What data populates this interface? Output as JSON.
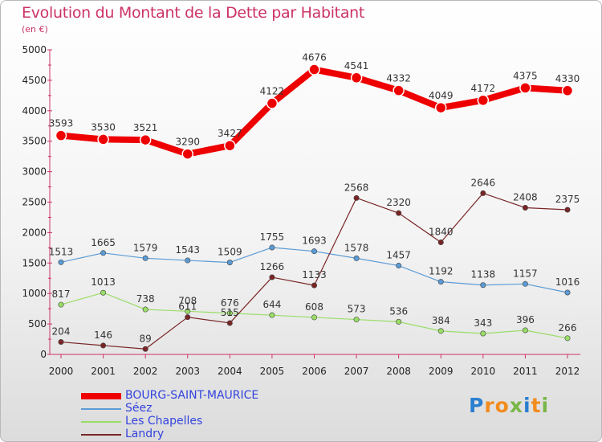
{
  "title": "Evolution du Montant de la Dette par Habitant",
  "subtitle": "(en €)",
  "brand": {
    "letters": [
      "P",
      "r",
      "o",
      "x",
      "i",
      "t",
      "i"
    ],
    "colors": [
      "#2b7fd1",
      "#f28c1e",
      "#f28c1e",
      "#7ab648",
      "#2b7fd1",
      "#f28c1e",
      "#7ab648"
    ]
  },
  "chart_data": {
    "type": "line",
    "title": "Evolution du Montant de la Dette par Habitant",
    "subtitle": "(en €)",
    "x": [
      "2000",
      "2001",
      "2002",
      "2003",
      "2004",
      "2005",
      "2006",
      "2007",
      "2008",
      "2009",
      "2010",
      "2011",
      "2012"
    ],
    "ylim": [
      0,
      5000
    ],
    "yticks": [
      "0",
      "500",
      "1000",
      "1500",
      "2000",
      "2500",
      "3000",
      "3500",
      "4000",
      "4500",
      "5000"
    ],
    "grid": false,
    "legend_position": "bottom-left",
    "series": [
      {
        "name": "BOURG-SAINT-MAURICE",
        "color": "#ee0000",
        "values": [
          3593,
          3530,
          3521,
          3290,
          3427,
          4122,
          4676,
          4541,
          4332,
          4049,
          4172,
          4375,
          4330
        ]
      },
      {
        "name": "Séez",
        "color": "#5b9bd5",
        "values": [
          1513,
          1665,
          1579,
          1543,
          1509,
          1755,
          1693,
          1578,
          1457,
          1192,
          1138,
          1157,
          1016
        ]
      },
      {
        "name": "Les Chapelles",
        "color": "#99dd66",
        "values": [
          817,
          1013,
          738,
          708,
          676,
          644,
          608,
          573,
          536,
          384,
          343,
          396,
          266
        ]
      },
      {
        "name": "Landry",
        "color": "#7a2525",
        "values": [
          204,
          146,
          89,
          611,
          515,
          1266,
          1133,
          2568,
          2320,
          1840,
          2646,
          2408,
          2375
        ]
      }
    ]
  }
}
